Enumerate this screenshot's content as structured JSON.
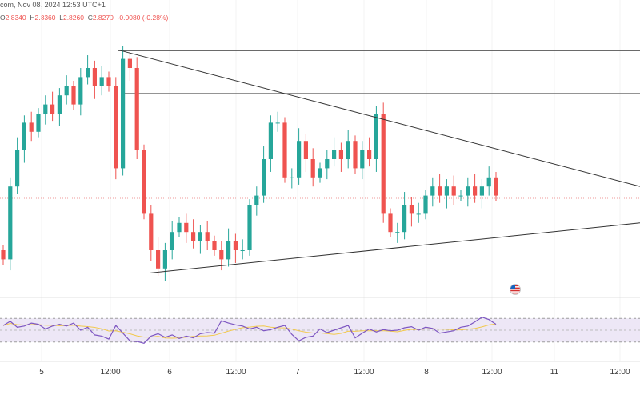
{
  "header": {
    "source_date": "com, Nov 08, 2024 12:53 UTC+1",
    "open_k": "O",
    "open_v": "2.8340",
    "high_k": "H",
    "high_v": "2.8360",
    "low_k": "L",
    "low_v": "2.8260",
    "close_k": "C",
    "close_v": "2.8270",
    "change": "-0.0080 (-0.28%)"
  },
  "colors": {
    "up": "#26a69a",
    "down": "#ef5350",
    "rsi_line": "#7e57c2",
    "rsi_ma": "#f2c94c",
    "rsi_band": "#ede7f6",
    "trendline": "#333333",
    "hline": "#555555",
    "price_line": "#ef9a9a"
  },
  "flag_icon": "us-flag-icon",
  "chart_data": [
    {
      "type": "candlestick",
      "title": "",
      "x_ticks": [
        "5",
        "12:00",
        "6",
        "12:00",
        "7",
        "12:00",
        "8",
        "12:00",
        "11",
        "12:00"
      ],
      "y_range": [
        2.72,
        3.02
      ],
      "last_close": 2.827,
      "horizontal_levels": [
        2.989,
        2.942
      ],
      "triangle": {
        "upper": [
          {
            "t": "Nov 05 14:00",
            "v": 2.99
          },
          {
            "t": "Nov 11 00:00",
            "v": 2.84
          }
        ],
        "lower": [
          {
            "t": "Nov 05 22:00",
            "v": 2.745
          },
          {
            "t": "Nov 11 00:00",
            "v": 2.8
          }
        ]
      },
      "closes": [
        2.76,
        2.84,
        2.88,
        2.91,
        2.9,
        2.92,
        2.93,
        2.92,
        2.94,
        2.95,
        2.93,
        2.96,
        2.97,
        2.95,
        2.96,
        2.95,
        2.86,
        2.98,
        2.97,
        2.88,
        2.81,
        2.77,
        2.75,
        2.77,
        2.79,
        2.8,
        2.79,
        2.78,
        2.79,
        2.78,
        2.77,
        2.76,
        2.78,
        2.77,
        2.77,
        2.82,
        2.83,
        2.87,
        2.91,
        2.91,
        2.85,
        2.85,
        2.89,
        2.87,
        2.85,
        2.86,
        2.87,
        2.88,
        2.87,
        2.89,
        2.86,
        2.88,
        2.87,
        2.92,
        2.81,
        2.79,
        2.79,
        2.82,
        2.81,
        2.81,
        2.83,
        2.84,
        2.83,
        2.84,
        2.83,
        2.83,
        2.84,
        2.83,
        2.84,
        2.85,
        2.83
      ]
    },
    {
      "type": "line",
      "title": "",
      "y_range": [
        0,
        100
      ],
      "band": [
        30,
        70
      ],
      "rsi": [
        58,
        65,
        55,
        57,
        62,
        60,
        52,
        57,
        60,
        57,
        62,
        50,
        55,
        42,
        40,
        35,
        58,
        45,
        32,
        31,
        28,
        40,
        44,
        38,
        42,
        36,
        40,
        37,
        44,
        46,
        45,
        66,
        62,
        59,
        57,
        52,
        55,
        49,
        51,
        55,
        58,
        43,
        32,
        38,
        40,
        52,
        46,
        50,
        54,
        58,
        37,
        45,
        52,
        47,
        51,
        49,
        50,
        54,
        56,
        50,
        55,
        53,
        45,
        47,
        49,
        55,
        57,
        64,
        72,
        68,
        60
      ]
    }
  ]
}
